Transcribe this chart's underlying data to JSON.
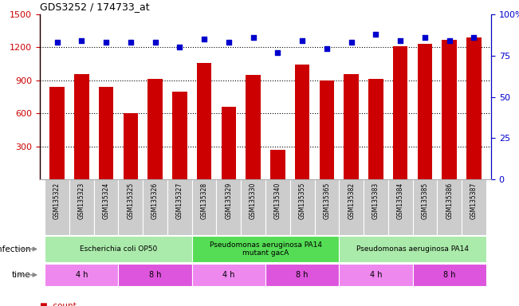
{
  "title": "GDS3252 / 174733_at",
  "samples": [
    "GSM135322",
    "GSM135323",
    "GSM135324",
    "GSM135325",
    "GSM135326",
    "GSM135327",
    "GSM135328",
    "GSM135329",
    "GSM135330",
    "GSM135340",
    "GSM135355",
    "GSM135365",
    "GSM135382",
    "GSM135383",
    "GSM135384",
    "GSM135385",
    "GSM135386",
    "GSM135387"
  ],
  "counts": [
    840,
    955,
    840,
    600,
    910,
    800,
    1060,
    660,
    950,
    270,
    1040,
    900,
    960,
    910,
    1210,
    1230,
    1270,
    1290
  ],
  "percentile_ranks": [
    83,
    84,
    83,
    83,
    83,
    80,
    85,
    83,
    86,
    77,
    84,
    79,
    83,
    88,
    84,
    86,
    84,
    86
  ],
  "ylim_left": [
    0,
    1500
  ],
  "ylim_right": [
    0,
    100
  ],
  "yticks_left": [
    300,
    600,
    900,
    1200,
    1500
  ],
  "yticks_right": [
    0,
    25,
    50,
    75,
    100
  ],
  "bar_color": "#cc0000",
  "dot_color": "#0000cc",
  "infection_groups": [
    {
      "label": "Escherichia coli OP50",
      "start": 0,
      "end": 6,
      "color": "#aaeaaa"
    },
    {
      "label": "Pseudomonas aeruginosa PA14\nmutant gacA",
      "start": 6,
      "end": 12,
      "color": "#55dd55"
    },
    {
      "label": "Pseudomonas aeruginosa PA14",
      "start": 12,
      "end": 18,
      "color": "#aaeaaa"
    }
  ],
  "time_groups": [
    {
      "label": "4 h",
      "start": 0,
      "end": 3,
      "color": "#ee88ee"
    },
    {
      "label": "8 h",
      "start": 3,
      "end": 6,
      "color": "#dd55dd"
    },
    {
      "label": "4 h",
      "start": 6,
      "end": 9,
      "color": "#ee88ee"
    },
    {
      "label": "8 h",
      "start": 9,
      "end": 12,
      "color": "#dd55dd"
    },
    {
      "label": "4 h",
      "start": 12,
      "end": 15,
      "color": "#ee88ee"
    },
    {
      "label": "8 h",
      "start": 15,
      "end": 18,
      "color": "#dd55dd"
    }
  ],
  "left_axis_color": "#cc0000",
  "right_axis_color": "#0000cc",
  "tick_area_color": "#cccccc",
  "bg_color": "#ffffff",
  "gridline_yticks": [
    300,
    600,
    900,
    1200
  ]
}
